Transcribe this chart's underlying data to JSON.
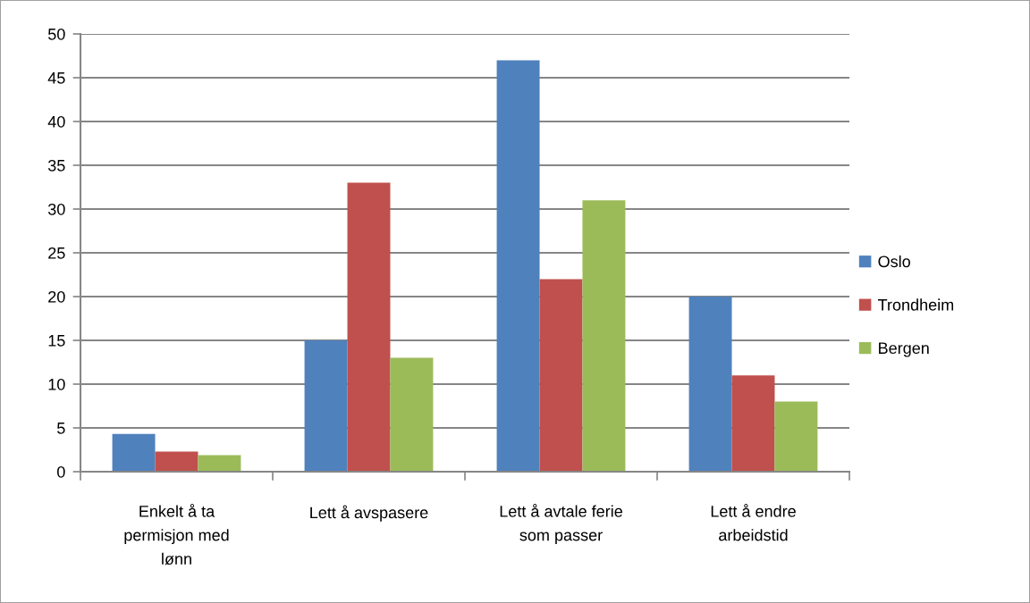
{
  "chart_data": {
    "type": "bar",
    "categories": [
      "Enkelt å ta permisjon med lønn",
      "Lett å avspasere",
      "Lett å avtale ferie som passer",
      "Lett å endre arbeidstid"
    ],
    "series": [
      {
        "name": "Oslo",
        "color": "#4f81bd",
        "values": [
          4.3,
          15,
          47,
          20
        ]
      },
      {
        "name": "Trondheim",
        "color": "#c0504d",
        "values": [
          2.3,
          33,
          22,
          11
        ]
      },
      {
        "name": "Bergen",
        "color": "#9bbb59",
        "values": [
          1.9,
          13,
          31,
          8
        ]
      }
    ],
    "ylim": [
      0,
      50
    ],
    "yticks": [
      0,
      5,
      10,
      15,
      20,
      25,
      30,
      35,
      40,
      45,
      50
    ],
    "grid": "y",
    "legend": "right"
  }
}
